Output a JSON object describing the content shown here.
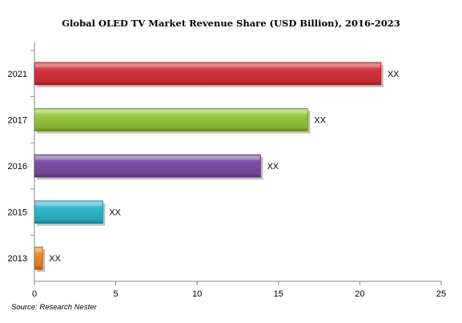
{
  "chart_data": {
    "type": "bar",
    "orientation": "horizontal",
    "title": "Global OLED TV Market Revenue Share (USD Billion), 2016-2023",
    "categories": [
      "2021",
      "2017",
      "2016",
      "2015",
      "2013"
    ],
    "values": [
      21.3,
      16.8,
      13.9,
      4.2,
      0.5
    ],
    "data_labels": [
      "XX",
      "XX",
      "XX",
      "XX",
      "XX"
    ],
    "bar_colors": [
      "#d9333b",
      "#97c83e",
      "#7c4fa8",
      "#2fb7cf",
      "#f08a2c"
    ],
    "xlim": [
      0,
      25
    ],
    "xticks": [
      "0",
      "5",
      "10",
      "15",
      "20",
      "25"
    ],
    "xlabel": "",
    "ylabel": "",
    "grid": false,
    "legend": "none"
  },
  "source": "Source: Research Nester"
}
